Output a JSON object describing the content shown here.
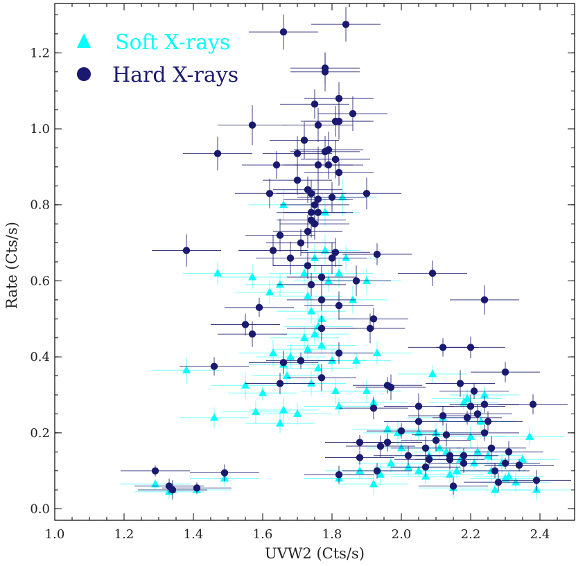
{
  "chart_data": {
    "type": "scatter",
    "title": "",
    "xlabel": "UVW2 (Cts/s)",
    "ylabel": "Rate (Cts/s)",
    "xlim": [
      1.0,
      2.5
    ],
    "ylim": [
      -0.03,
      1.33
    ],
    "xticks": [
      1.0,
      1.2,
      1.4,
      1.6,
      1.8,
      2.0,
      2.2,
      2.4
    ],
    "xtick_labels": [
      "1.0",
      "1.2",
      "1.4",
      "1.6",
      "1.8",
      "2.0",
      "2.2",
      "2.4"
    ],
    "yticks": [
      0.0,
      0.2,
      0.4,
      0.6,
      0.8,
      1.0,
      1.2
    ],
    "ytick_labels": [
      "0.0",
      "0.2",
      "0.4",
      "0.6",
      "0.8",
      "1.0",
      "1.2"
    ],
    "legend_position": "top-left",
    "series": [
      {
        "name": "Soft X-rays",
        "marker": "triangle",
        "color": "#00ffff",
        "x_error": 0.1,
        "points": [
          [
            1.29,
            0.065
          ],
          [
            1.33,
            0.045
          ],
          [
            1.34,
            0.05
          ],
          [
            1.41,
            0.05
          ],
          [
            1.49,
            0.08
          ],
          [
            1.38,
            0.365
          ],
          [
            1.47,
            0.62
          ],
          [
            1.46,
            0.24
          ],
          [
            1.55,
            0.325
          ],
          [
            1.57,
            0.61
          ],
          [
            1.58,
            0.255
          ],
          [
            1.6,
            0.305
          ],
          [
            1.62,
            0.57
          ],
          [
            1.63,
            0.41
          ],
          [
            1.65,
            0.59
          ],
          [
            1.66,
            0.8
          ],
          [
            1.66,
            0.38
          ],
          [
            1.67,
            0.35
          ],
          [
            1.65,
            0.225
          ],
          [
            1.66,
            0.26
          ],
          [
            1.68,
            0.4
          ],
          [
            1.7,
            0.25
          ],
          [
            1.72,
            0.62
          ],
          [
            1.72,
            0.45
          ],
          [
            1.73,
            0.56
          ],
          [
            1.73,
            0.42
          ],
          [
            1.74,
            0.52
          ],
          [
            1.74,
            0.33
          ],
          [
            1.75,
            0.46
          ],
          [
            1.75,
            0.66
          ],
          [
            1.76,
            0.48
          ],
          [
            1.76,
            0.37
          ],
          [
            1.77,
            0.5
          ],
          [
            1.77,
            0.43
          ],
          [
            1.78,
            0.78
          ],
          [
            1.78,
            0.68
          ],
          [
            1.79,
            0.6
          ],
          [
            1.8,
            0.39
          ],
          [
            1.81,
            0.31
          ],
          [
            1.82,
            0.27
          ],
          [
            1.82,
            0.62
          ],
          [
            1.83,
            0.82
          ],
          [
            1.84,
            0.66
          ],
          [
            1.86,
            0.55
          ],
          [
            1.87,
            0.39
          ],
          [
            1.9,
            0.6
          ],
          [
            1.9,
            0.31
          ],
          [
            1.92,
            0.28
          ],
          [
            1.93,
            0.41
          ],
          [
            1.94,
            0.09
          ],
          [
            1.96,
            0.21
          ],
          [
            1.97,
            0.12
          ],
          [
            1.99,
            0.2
          ],
          [
            2.0,
            0.16
          ],
          [
            2.02,
            0.11
          ],
          [
            2.05,
            0.1
          ],
          [
            2.07,
            0.085
          ],
          [
            2.08,
            0.14
          ],
          [
            2.09,
            0.355
          ],
          [
            2.1,
            0.2
          ],
          [
            2.12,
            0.24
          ],
          [
            2.13,
            0.15
          ],
          [
            2.14,
            0.09
          ],
          [
            2.15,
            0.055
          ],
          [
            2.16,
            0.1
          ],
          [
            2.17,
            0.13
          ],
          [
            2.18,
            0.28
          ],
          [
            2.19,
            0.29
          ],
          [
            2.2,
            0.19
          ],
          [
            2.21,
            0.12
          ],
          [
            2.22,
            0.15
          ],
          [
            2.23,
            0.23
          ],
          [
            2.24,
            0.3
          ],
          [
            2.25,
            0.14
          ],
          [
            2.26,
            0.1
          ],
          [
            2.27,
            0.05
          ],
          [
            2.29,
            0.12
          ],
          [
            2.3,
            0.08
          ],
          [
            2.31,
            0.085
          ],
          [
            2.33,
            0.07
          ],
          [
            2.35,
            0.13
          ],
          [
            2.37,
            0.19
          ],
          [
            2.39,
            0.05
          ],
          [
            1.82,
            0.08
          ],
          [
            1.88,
            0.1
          ],
          [
            1.92,
            0.065
          ],
          [
            2.05,
            0.2
          ],
          [
            2.11,
            0.16
          ]
        ]
      },
      {
        "name": "Hard X-rays",
        "marker": "circle",
        "color": "#191970",
        "x_error": 0.1,
        "points": [
          [
            1.29,
            0.1
          ],
          [
            1.33,
            0.06
          ],
          [
            1.34,
            0.05
          ],
          [
            1.41,
            0.055
          ],
          [
            1.49,
            0.095
          ],
          [
            1.38,
            0.68
          ],
          [
            1.46,
            0.375
          ],
          [
            1.47,
            0.935
          ],
          [
            1.57,
            1.01
          ],
          [
            1.55,
            0.485
          ],
          [
            1.57,
            0.46
          ],
          [
            1.59,
            0.53
          ],
          [
            1.62,
            0.83
          ],
          [
            1.63,
            0.68
          ],
          [
            1.64,
            0.905
          ],
          [
            1.65,
            0.33
          ],
          [
            1.65,
            0.72
          ],
          [
            1.66,
            1.255
          ],
          [
            1.66,
            0.385
          ],
          [
            1.68,
            0.66
          ],
          [
            1.7,
            0.865
          ],
          [
            1.7,
            0.935
          ],
          [
            1.71,
            0.39
          ],
          [
            1.71,
            0.7
          ],
          [
            1.72,
            0.97
          ],
          [
            1.73,
            0.84
          ],
          [
            1.73,
            0.64
          ],
          [
            1.73,
            0.73
          ],
          [
            1.74,
            0.83
          ],
          [
            1.74,
            0.78
          ],
          [
            1.74,
            0.76
          ],
          [
            1.74,
            0.59
          ],
          [
            1.75,
            0.75
          ],
          [
            1.75,
            1.065
          ],
          [
            1.75,
            0.8
          ],
          [
            1.76,
            0.815
          ],
          [
            1.76,
            0.78
          ],
          [
            1.76,
            1.01
          ],
          [
            1.76,
            0.905
          ],
          [
            1.77,
            0.55
          ],
          [
            1.77,
            0.475
          ],
          [
            1.77,
            0.345
          ],
          [
            1.77,
            0.61
          ],
          [
            1.78,
            1.15
          ],
          [
            1.78,
            1.16
          ],
          [
            1.78,
            0.94
          ],
          [
            1.79,
            0.945
          ],
          [
            1.79,
            0.905
          ],
          [
            1.8,
            0.82
          ],
          [
            1.8,
            0.66
          ],
          [
            1.81,
            1.02
          ],
          [
            1.81,
            0.675
          ],
          [
            1.81,
            0.92
          ],
          [
            1.82,
            1.08
          ],
          [
            1.82,
            1.02
          ],
          [
            1.82,
            0.885
          ],
          [
            1.82,
            0.41
          ],
          [
            1.82,
            0.535
          ],
          [
            1.84,
            1.275
          ],
          [
            1.86,
            1.04
          ],
          [
            1.87,
            0.6
          ],
          [
            1.88,
            0.175
          ],
          [
            1.9,
            0.83
          ],
          [
            1.91,
            0.475
          ],
          [
            1.92,
            0.5
          ],
          [
            1.92,
            0.265
          ],
          [
            1.93,
            0.67
          ],
          [
            1.93,
            0.1
          ],
          [
            1.94,
            0.165
          ],
          [
            1.96,
            0.325
          ],
          [
            1.96,
            0.175
          ],
          [
            1.97,
            0.32
          ],
          [
            2.0,
            0.205
          ],
          [
            2.02,
            0.14
          ],
          [
            2.05,
            0.27
          ],
          [
            2.05,
            0.23
          ],
          [
            2.07,
            0.11
          ],
          [
            2.08,
            0.13
          ],
          [
            2.09,
            0.62
          ],
          [
            2.1,
            0.18
          ],
          [
            2.12,
            0.425
          ],
          [
            2.12,
            0.245
          ],
          [
            2.13,
            0.195
          ],
          [
            2.14,
            0.14
          ],
          [
            2.15,
            0.06
          ],
          [
            2.17,
            0.33
          ],
          [
            2.18,
            0.14
          ],
          [
            2.18,
            0.12
          ],
          [
            2.19,
            0.24
          ],
          [
            2.2,
            0.425
          ],
          [
            2.2,
            0.27
          ],
          [
            2.21,
            0.31
          ],
          [
            2.22,
            0.25
          ],
          [
            2.24,
            0.55
          ],
          [
            2.24,
            0.275
          ],
          [
            2.25,
            0.23
          ],
          [
            2.26,
            0.16
          ],
          [
            2.27,
            0.1
          ],
          [
            2.28,
            0.07
          ],
          [
            2.3,
            0.12
          ],
          [
            2.3,
            0.36
          ],
          [
            2.31,
            0.15
          ],
          [
            2.34,
            0.115
          ],
          [
            2.38,
            0.275
          ],
          [
            2.39,
            0.075
          ],
          [
            1.88,
            0.135
          ],
          [
            1.82,
            0.09
          ],
          [
            2.07,
            0.16
          ],
          [
            2.24,
            0.2
          ],
          [
            2.14,
            0.13
          ]
        ]
      }
    ]
  }
}
